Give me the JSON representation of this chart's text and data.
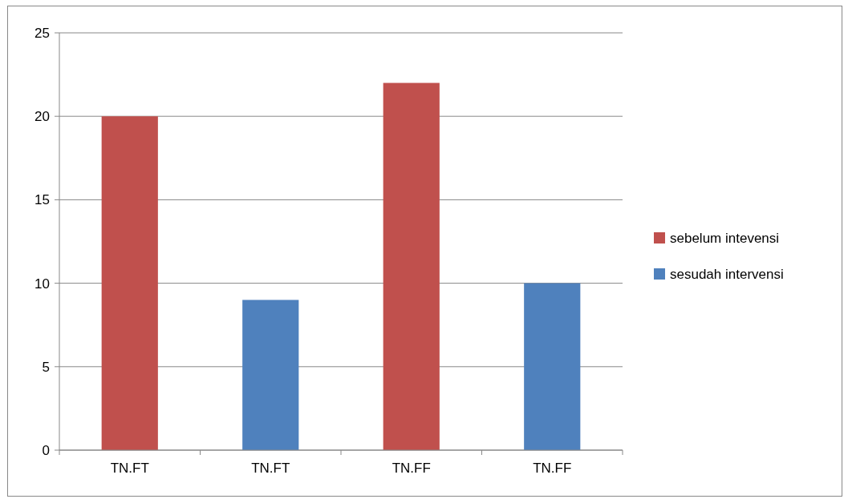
{
  "chart_data": {
    "type": "bar",
    "stacked": true,
    "categories": [
      "TN.FT",
      "TN.FT",
      "TN.FF",
      "TN.FF"
    ],
    "series": [
      {
        "name": "sebelum intevensi",
        "color": "#c0504d",
        "values": [
          20,
          null,
          22,
          null
        ]
      },
      {
        "name": "sesudah intervensi",
        "color": "#4f81bd",
        "values": [
          null,
          9,
          null,
          10
        ]
      }
    ],
    "ylim": [
      0,
      25
    ],
    "yticks": [
      0,
      5,
      10,
      15,
      20,
      25
    ],
    "grid": "y",
    "legend": "right"
  }
}
